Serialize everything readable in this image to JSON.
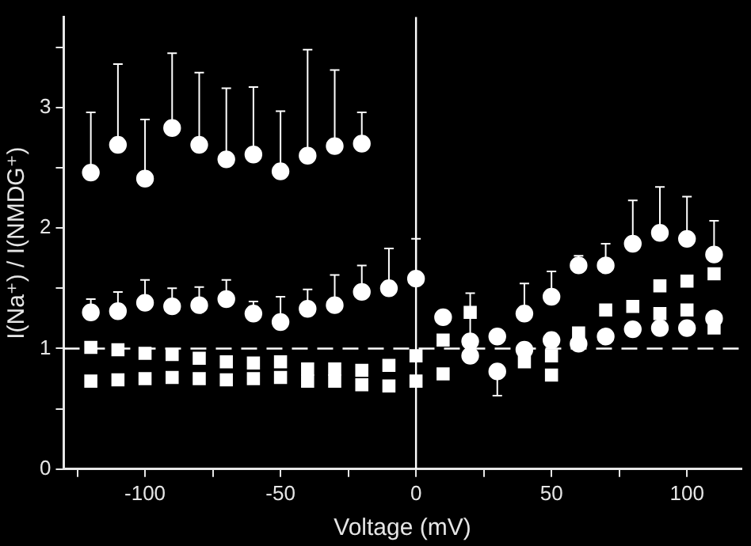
{
  "chart_data": {
    "type": "scatter",
    "xlabel": "Voltage (mV)",
    "ylabel": "I(Na⁺) / I(NMDG⁺)",
    "x": [
      -120,
      -110,
      -100,
      -90,
      -80,
      -70,
      -60,
      -50,
      -40,
      -30,
      -20,
      -10,
      0,
      10,
      20,
      30,
      40,
      50,
      60,
      70,
      80,
      90,
      100,
      110
    ],
    "series": [
      {
        "color": "#ffffff",
        "marker": "circle",
        "values": [
          2.46,
          2.69,
          2.41,
          2.83,
          2.69,
          2.57,
          2.61,
          2.47,
          2.6,
          2.68,
          2.7,
          null,
          null,
          null,
          1.06,
          1.1,
          1.29,
          1.43,
          1.69,
          1.69,
          1.87,
          1.96,
          1.91,
          1.78
        ],
        "errors": [
          [
            2.46,
            2.96
          ],
          [
            2.69,
            3.36
          ],
          [
            2.41,
            2.9
          ],
          [
            2.83,
            3.45
          ],
          [
            2.69,
            3.29
          ],
          [
            2.57,
            3.16
          ],
          [
            2.61,
            3.17
          ],
          [
            2.47,
            2.97
          ],
          [
            2.6,
            3.48
          ],
          [
            2.68,
            3.31
          ],
          [
            2.7,
            2.96
          ],
          null,
          null,
          null,
          [
            1.06,
            1.46
          ],
          [
            1.1,
            1.15
          ],
          [
            1.29,
            1.54
          ],
          [
            1.43,
            1.64
          ],
          [
            1.69,
            1.77
          ],
          [
            1.69,
            1.87
          ],
          [
            1.87,
            2.23
          ],
          [
            1.96,
            2.34
          ],
          [
            1.91,
            2.26
          ],
          [
            1.78,
            2.06
          ]
        ]
      },
      {
        "color": "#ffffff",
        "marker": "circle",
        "values": [
          1.3,
          1.31,
          1.38,
          1.35,
          1.36,
          1.41,
          1.29,
          1.22,
          1.33,
          1.36,
          1.47,
          1.5,
          1.58,
          1.26,
          0.94,
          0.81,
          0.99,
          1.07,
          1.04,
          1.1,
          1.16,
          1.17,
          1.17,
          1.25
        ],
        "errors": [
          [
            1.3,
            1.41
          ],
          [
            1.31,
            1.47
          ],
          [
            1.38,
            1.57
          ],
          [
            1.35,
            1.5
          ],
          [
            1.36,
            1.51
          ],
          [
            1.41,
            1.57
          ],
          [
            1.29,
            1.39
          ],
          [
            1.22,
            1.43
          ],
          [
            1.33,
            1.49
          ],
          [
            1.36,
            1.61
          ],
          [
            1.47,
            1.69
          ],
          [
            1.5,
            1.83
          ],
          [
            1.58,
            1.91
          ],
          null,
          null,
          [
            0.61,
            0.81
          ],
          null,
          null,
          null,
          null,
          null,
          null,
          null,
          null
        ]
      },
      {
        "color": "#ffffff",
        "marker": "square",
        "values": [
          1.01,
          0.99,
          0.96,
          0.95,
          0.92,
          0.89,
          0.88,
          0.89,
          0.83,
          0.83,
          0.82,
          0.86,
          0.94,
          1.07,
          1.3,
          null,
          null,
          0.94,
          null,
          1.32,
          null,
          1.52,
          1.56,
          1.62
        ]
      },
      {
        "color": "#ffffff",
        "marker": "square",
        "values": [
          0.73,
          0.74,
          0.75,
          0.76,
          0.75,
          0.74,
          0.75,
          0.76,
          0.73,
          0.73,
          0.7,
          0.69,
          0.73,
          0.79,
          null,
          null,
          0.89,
          0.78,
          1.13,
          null,
          1.35,
          1.29,
          1.32,
          1.17
        ]
      }
    ],
    "xlim": [
      -130,
      120
    ],
    "xticks": [
      {
        "value": -125,
        "label": null
      },
      -100,
      {
        "value": -75,
        "label": null
      },
      -50,
      {
        "value": -25,
        "label": null
      },
      0,
      {
        "value": 25,
        "label": null
      },
      50,
      {
        "value": 75,
        "label": null
      },
      100
    ],
    "ylim": [
      0,
      3.75
    ],
    "yticks": [
      0,
      {
        "value": 0.5,
        "label": null
      },
      1,
      {
        "value": 1.5,
        "label": null
      },
      2,
      {
        "value": 2.5,
        "label": null
      },
      3,
      {
        "value": 3.5,
        "label": null
      }
    ],
    "ref_lines": [
      {
        "axis": "y",
        "value": 1,
        "color": "#ffffff",
        "line_style": "dashed"
      },
      {
        "axis": "x",
        "value": 0,
        "color": "#ffffff",
        "line_style": "solid"
      }
    ],
    "grid": false,
    "legend": false
  }
}
